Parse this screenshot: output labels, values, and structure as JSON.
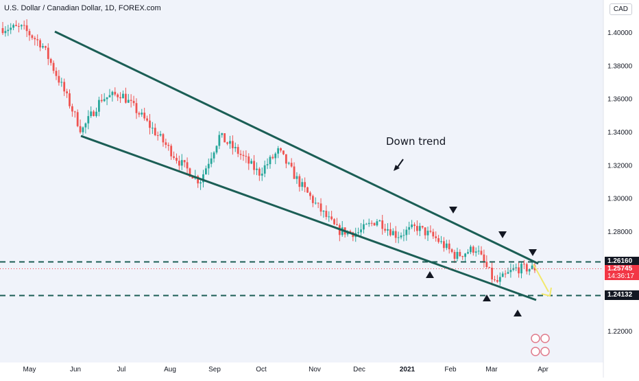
{
  "header": {
    "symbol_title": "U.S. Dollar / Canadian Dollar, 1D, FOREX.com",
    "currency_badge": "CAD"
  },
  "colors": {
    "up": "#26a69a",
    "down": "#ef5350",
    "trendline": "#1b5e55",
    "dashed": "#1b5e55",
    "price_badge": "#f23645",
    "level_badge": "#131722",
    "projection": "#f2e86d",
    "background": "#f0f3fa"
  },
  "annotation": {
    "text": "Down trend"
  },
  "price_axis": {
    "ticks": [
      "1.40000",
      "1.38000",
      "1.36000",
      "1.34000",
      "1.32000",
      "1.30000",
      "1.28000",
      "1.22000"
    ]
  },
  "time_axis": {
    "labels": [
      "May",
      "Jun",
      "Jul",
      "Aug",
      "Sep",
      "Oct",
      "Nov",
      "Dec",
      "2021",
      "Feb",
      "Mar",
      "Apr"
    ]
  },
  "levels": {
    "upper": "1.26160",
    "lower": "1.24132",
    "last_price": "1.25745",
    "countdown": "14:36:17"
  },
  "chart_data": {
    "type": "candlestick",
    "title": "U.S. Dollar / Canadian Dollar, 1D, FOREX.com",
    "ylim": [
      1.205,
      1.415
    ],
    "x_labels": [
      "May",
      "Jun",
      "Jul",
      "Aug",
      "Sep",
      "Oct",
      "Nov",
      "Dec",
      "2021",
      "Feb",
      "Mar",
      "Apr"
    ],
    "path_points": [
      [
        1.41,
        1.395
      ],
      [
        1.405,
        1.4
      ],
      [
        1.4,
        1.385
      ],
      [
        1.385,
        1.35
      ],
      [
        1.345,
        1.336
      ],
      [
        1.358,
        1.362
      ],
      [
        1.368,
        1.358
      ],
      [
        1.355,
        1.345
      ],
      [
        1.34,
        1.332
      ],
      [
        1.325,
        1.318
      ],
      [
        1.305,
        1.315
      ],
      [
        1.335,
        1.34
      ],
      [
        1.332,
        1.322
      ],
      [
        1.312,
        1.318
      ],
      [
        1.322,
        1.335
      ],
      [
        1.315,
        1.305
      ],
      [
        1.297,
        1.292
      ],
      [
        1.285,
        1.276
      ],
      [
        1.281,
        1.277
      ],
      [
        1.292,
        1.282
      ],
      [
        1.275,
        1.28
      ],
      [
        1.285,
        1.28
      ],
      [
        1.278,
        1.273
      ],
      [
        1.262,
        1.268
      ],
      [
        1.275,
        1.265
      ],
      [
        1.252,
        1.245
      ],
      [
        1.255,
        1.26
      ],
      [
        1.258,
        1.2575
      ]
    ],
    "horizontal_levels": [
      1.2616,
      1.24132
    ],
    "last_price": 1.25745
  }
}
